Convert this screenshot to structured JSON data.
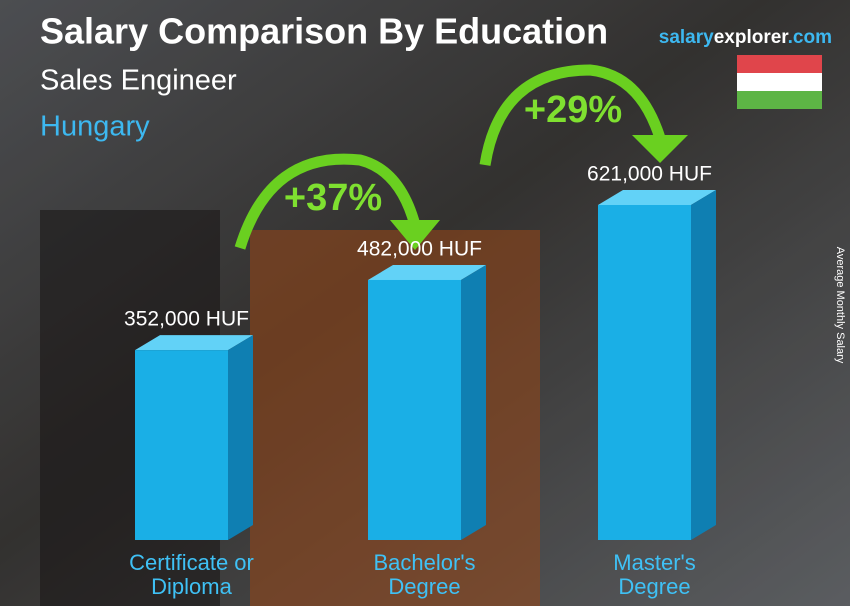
{
  "chart_data": {
    "type": "bar",
    "title": "Salary Comparison By Education",
    "subtitle": "Sales Engineer",
    "location": "Hungary",
    "site": [
      "salary",
      "explorer",
      ".com"
    ],
    "y_label": "Average Monthly Salary",
    "categories": [
      "Certificate or Diploma",
      "Bachelor's Degree",
      "Master's Degree"
    ],
    "values": [
      352000,
      482000,
      621000
    ],
    "value_labels": [
      "352,000 HUF",
      "482,000 HUF",
      "621,000 HUF"
    ],
    "annotations": [
      "+37%",
      "+29%"
    ],
    "color": "#1aafe6"
  }
}
